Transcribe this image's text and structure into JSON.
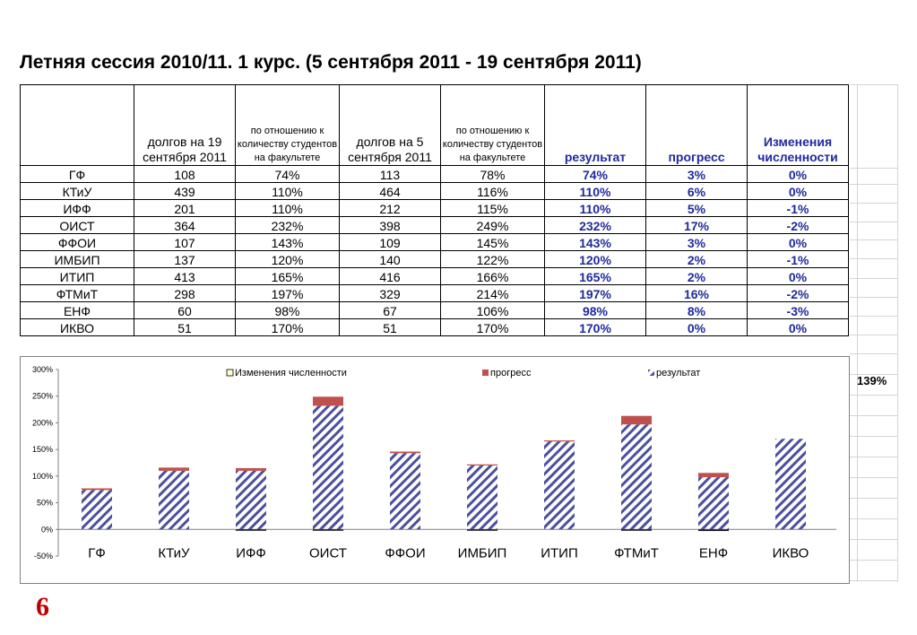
{
  "title": "Летняя сессия 2010/11. 1 курс. (5 сентября  2011  -  19 сентября 2011)",
  "table": {
    "headers": [
      "",
      "долгов на 19 сентября 2011",
      "по отношению к количеству студентов на факультете",
      "долгов на 5 сентября 2011",
      "по отношению к количеству студентов на факультете",
      "результат",
      "прогресс",
      "Изменения численности"
    ],
    "rows": [
      [
        "ГФ",
        "108",
        "74%",
        "113",
        "78%",
        "74%",
        "3%",
        "0%"
      ],
      [
        "КТиУ",
        "439",
        "110%",
        "464",
        "116%",
        "110%",
        "6%",
        "0%"
      ],
      [
        "ИФФ",
        "201",
        "110%",
        "212",
        "115%",
        "110%",
        "5%",
        "-1%"
      ],
      [
        "ОИСТ",
        "364",
        "232%",
        "398",
        "249%",
        "232%",
        "17%",
        "-2%"
      ],
      [
        "ФФОИ",
        "107",
        "143%",
        "109",
        "145%",
        "143%",
        "3%",
        "0%"
      ],
      [
        "ИМБИП",
        "137",
        "120%",
        "140",
        "122%",
        "120%",
        "2%",
        "-1%"
      ],
      [
        "ИТИП",
        "413",
        "165%",
        "416",
        "166%",
        "165%",
        "2%",
        "0%"
      ],
      [
        "ФТМиТ",
        "298",
        "197%",
        "329",
        "214%",
        "197%",
        "16%",
        "-2%"
      ],
      [
        "ЕНФ",
        "60",
        "98%",
        "67",
        "106%",
        "98%",
        "8%",
        "-3%"
      ],
      [
        "ИКВО",
        "51",
        "170%",
        "51",
        "170%",
        "170%",
        "0%",
        "0%"
      ]
    ]
  },
  "side_note": "139%",
  "page_number": "6",
  "colors": {
    "result_stripe": "#4b4f9e",
    "progress": "#c0504d",
    "change_legend": "#ffffcc",
    "blue_text": "#1f2a9c"
  },
  "chart_data": {
    "type": "bar",
    "stacked": true,
    "categories": [
      "ГФ",
      "КТиУ",
      "ИФФ",
      "ОИСТ",
      "ФФОИ",
      "ИМБИП",
      "ИТИП",
      "ФТМиТ",
      "ЕНФ",
      "ИКВО"
    ],
    "series": [
      {
        "name": "Изменения численности",
        "values": [
          0,
          0,
          -1,
          -2,
          0,
          -1,
          0,
          -2,
          -3,
          0
        ]
      },
      {
        "name": "прогресс",
        "values": [
          3,
          6,
          5,
          17,
          3,
          2,
          2,
          16,
          8,
          0
        ]
      },
      {
        "name": "результат",
        "values": [
          74,
          110,
          110,
          232,
          143,
          120,
          165,
          197,
          98,
          170
        ]
      }
    ],
    "y_ticks": [
      "300%",
      "250%",
      "200%",
      "150%",
      "100%",
      "50%",
      "0%",
      "-50%"
    ],
    "ylim": [
      -50,
      300
    ],
    "legend_position": "top",
    "grid": false
  }
}
